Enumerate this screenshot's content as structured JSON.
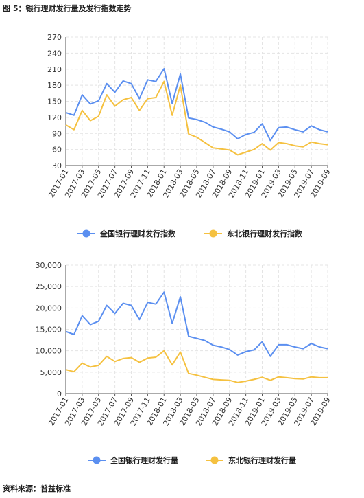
{
  "figure_title": "图 5：银行理财发行量及发行指数走势",
  "source": "资料来源：普益标准",
  "colors": {
    "blue": "#5b8ff0",
    "yellow": "#f5c140"
  },
  "chart_data": [
    {
      "type": "line",
      "x": [
        "2017-01",
        "2017-02",
        "2017-03",
        "2017-04",
        "2017-05",
        "2017-06",
        "2017-07",
        "2017-08",
        "2017-09",
        "2017-10",
        "2017-11",
        "2017-12",
        "2018-01",
        "2018-02",
        "2018-03",
        "2018-04",
        "2018-05",
        "2018-06",
        "2018-07",
        "2018-08",
        "2018-09",
        "2018-10",
        "2018-11",
        "2018-12",
        "2019-01",
        "2019-02",
        "2019-03",
        "2019-04",
        "2019-05",
        "2019-06",
        "2019-07",
        "2019-08",
        "2019-09"
      ],
      "xtick_labels": [
        "2017-01",
        "2017-03",
        "2017-05",
        "2017-07",
        "2017-09",
        "2017-11",
        "2018-01",
        "2018-03",
        "2018-05",
        "2018-07",
        "2018-09",
        "2018-11",
        "2019-01",
        "2019-03",
        "2019-05",
        "2019-07",
        "2019-09"
      ],
      "yticks": [
        "30",
        "60",
        "90",
        "120",
        "150",
        "180",
        "210",
        "240",
        "270"
      ],
      "ylim": [
        30,
        270
      ],
      "grid": true,
      "legend_position": "bottom",
      "series": [
        {
          "name": "全国银行理财发行指数",
          "color": "#5b8ff0",
          "values": [
            129,
            124,
            162,
            145,
            151,
            183,
            167,
            188,
            183,
            155,
            190,
            187,
            211,
            146,
            201,
            119,
            116,
            111,
            102,
            98,
            93,
            80,
            88,
            92,
            108,
            77,
            101,
            102,
            97,
            93,
            104,
            97,
            93
          ]
        },
        {
          "name": "东北银行理财发行指数",
          "color": "#f5c140",
          "values": [
            106,
            97,
            133,
            114,
            122,
            162,
            141,
            153,
            157,
            133,
            155,
            157,
            187,
            124,
            180,
            89,
            83,
            73,
            63,
            61,
            59,
            50,
            55,
            60,
            71,
            59,
            73,
            71,
            67,
            65,
            74,
            71,
            69
          ]
        }
      ]
    },
    {
      "type": "line",
      "x": [
        "2017-01",
        "2017-02",
        "2017-03",
        "2017-04",
        "2017-05",
        "2017-06",
        "2017-07",
        "2017-08",
        "2017-09",
        "2017-10",
        "2017-11",
        "2017-12",
        "2018-01",
        "2018-02",
        "2018-03",
        "2018-04",
        "2018-05",
        "2018-06",
        "2018-07",
        "2018-08",
        "2018-09",
        "2018-10",
        "2018-11",
        "2018-12",
        "2019-01",
        "2019-02",
        "2019-03",
        "2019-04",
        "2019-05",
        "2019-06",
        "2019-07",
        "2019-08",
        "2019-09"
      ],
      "xtick_labels": [
        "2017-01",
        "2017-03",
        "2017-05",
        "2017-07",
        "2017-09",
        "2017-11",
        "2018-01",
        "2018-03",
        "2018-05",
        "2018-07",
        "2018-09",
        "2018-11",
        "2019-01",
        "2019-03",
        "2019-05",
        "2019-07",
        "2019-09"
      ],
      "yticks": [
        "0",
        "5,000",
        "10,000",
        "15,000",
        "20,000",
        "25,000",
        "30,000"
      ],
      "ylim": [
        0,
        30000
      ],
      "grid": true,
      "legend_position": "bottom",
      "series": [
        {
          "name": "全国银行理财发行量",
          "color": "#5b8ff0",
          "values": [
            14500,
            13800,
            18200,
            16100,
            16900,
            20600,
            18700,
            21100,
            20600,
            17300,
            21300,
            20900,
            23700,
            16400,
            22600,
            13400,
            12900,
            12400,
            11300,
            10900,
            10300,
            9000,
            9800,
            10200,
            12100,
            8700,
            11400,
            11400,
            10900,
            10500,
            11700,
            10900,
            10500
          ]
        },
        {
          "name": "东北银行理财发行量",
          "color": "#f5c140",
          "values": [
            5600,
            5100,
            7100,
            6200,
            6600,
            8700,
            7500,
            8200,
            8400,
            7300,
            8300,
            8500,
            10000,
            6700,
            9700,
            4700,
            4300,
            3800,
            3300,
            3200,
            3100,
            2600,
            2900,
            3300,
            3800,
            3100,
            3900,
            3700,
            3500,
            3400,
            3900,
            3700,
            3700
          ]
        }
      ]
    }
  ]
}
